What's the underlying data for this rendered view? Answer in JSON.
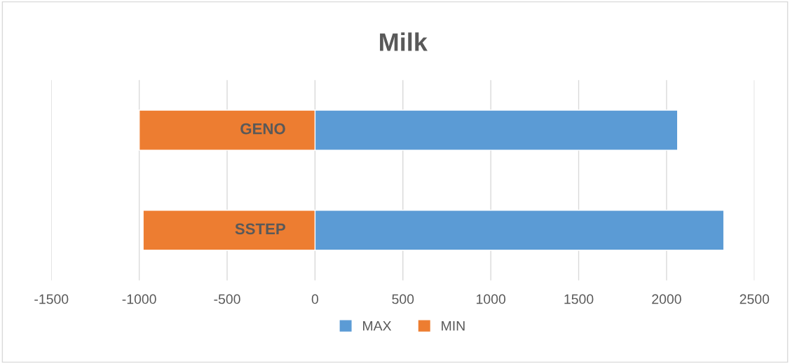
{
  "chart_data": {
    "type": "bar",
    "title": "Milk",
    "orientation": "horizontal",
    "stacked": true,
    "categories": [
      "GENO",
      "SSTEP"
    ],
    "series": [
      {
        "name": "MAX",
        "color": "#5b9bd5",
        "values": [
          2063,
          2326
        ]
      },
      {
        "name": "MIN",
        "color": "#ed7d31",
        "values": [
          -1000,
          -978
        ]
      }
    ],
    "xlim": [
      -1500,
      2500
    ],
    "xticks": [
      -1500,
      -1000,
      -500,
      0,
      500,
      1000,
      1500,
      2000,
      2500
    ],
    "grid": "x",
    "legend": "bottom"
  }
}
